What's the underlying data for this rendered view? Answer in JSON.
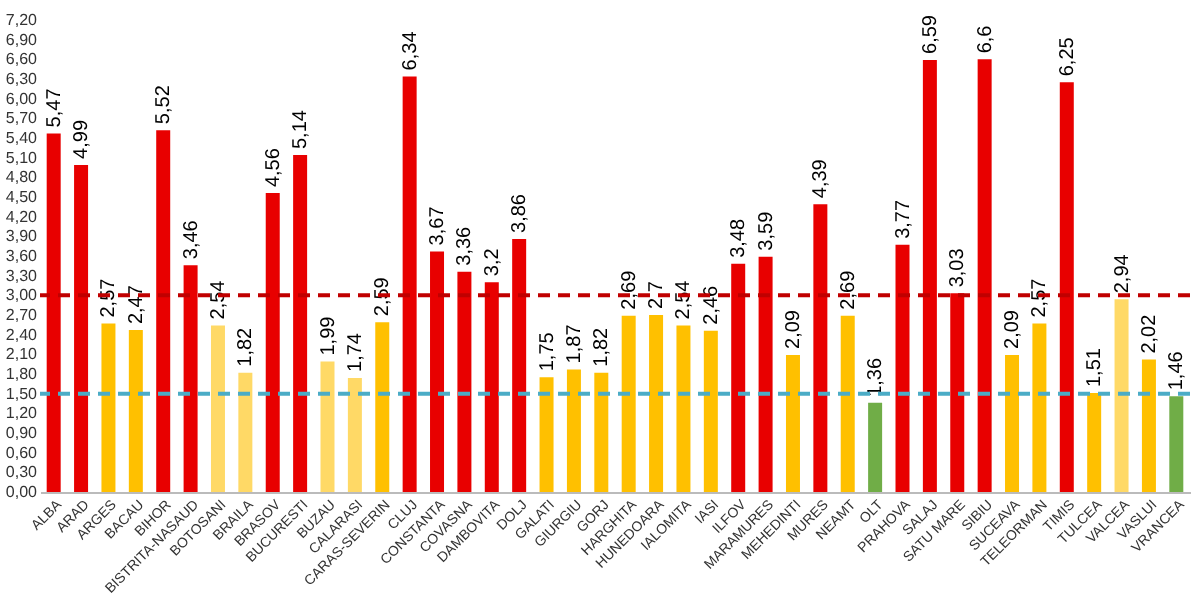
{
  "chart_data": {
    "type": "bar",
    "categories": [
      "ALBA",
      "ARAD",
      "ARGES",
      "BACAU",
      "BIHOR",
      "BISTRITA-NASAUD",
      "BOTOSANI",
      "BRAILA",
      "BRASOV",
      "BUCURESTI",
      "BUZAU",
      "CALARASI",
      "CARAS-SEVERIN",
      "CLUJ",
      "CONSTANTA",
      "COVASNA",
      "DAMBOVITA",
      "DOLJ",
      "GALATI",
      "GIURGIU",
      "GORJ",
      "HARGHITA",
      "HUNEDOARA",
      "IALOMITA",
      "IASI",
      "ILFOV",
      "MARAMURES",
      "MEHEDINTI",
      "MURES",
      "NEAMT",
      "OLT",
      "PRAHOVA",
      "SALAJ",
      "SATU MARE",
      "SIBIU",
      "SUCEAVA",
      "TELEORMAN",
      "TIMIS",
      "TULCEA",
      "VALCEA",
      "VASLUI",
      "VRANCEA"
    ],
    "values": [
      5.47,
      4.99,
      2.57,
      2.47,
      5.52,
      3.46,
      2.54,
      1.82,
      4.56,
      5.14,
      1.99,
      1.74,
      2.59,
      6.34,
      3.67,
      3.36,
      3.2,
      3.86,
      1.75,
      1.87,
      1.82,
      2.69,
      2.7,
      2.54,
      2.46,
      3.48,
      3.59,
      2.09,
      4.39,
      2.69,
      1.36,
      3.77,
      6.59,
      3.03,
      6.6,
      2.09,
      2.57,
      6.25,
      1.51,
      2.94,
      2.02,
      1.46
    ],
    "colors": [
      "#e80000",
      "#e80000",
      "#ffc000",
      "#ffc000",
      "#e80000",
      "#e80000",
      "#ffd966",
      "#ffd966",
      "#e80000",
      "#e80000",
      "#ffd966",
      "#ffd966",
      "#ffc000",
      "#e80000",
      "#e80000",
      "#e80000",
      "#e80000",
      "#e80000",
      "#ffc000",
      "#ffc000",
      "#ffc000",
      "#ffc000",
      "#ffc000",
      "#ffc000",
      "#ffc000",
      "#e80000",
      "#e80000",
      "#ffc000",
      "#e80000",
      "#ffc000",
      "#70ad47",
      "#e80000",
      "#e80000",
      "#e80000",
      "#e80000",
      "#ffc000",
      "#ffc000",
      "#e80000",
      "#ffc000",
      "#ffd966",
      "#ffc000",
      "#70ad47"
    ],
    "value_labels": [
      "5,47",
      "4,99",
      "2,57",
      "2,47",
      "5,52",
      "3,46",
      "2,54",
      "1,82",
      "4,56",
      "5,14",
      "1,99",
      "1,74",
      "2,59",
      "6,34",
      "3,67",
      "3,36",
      "3,2",
      "3,86",
      "1,75",
      "1,87",
      "1,82",
      "2,69",
      "2,7",
      "2,54",
      "2,46",
      "3,48",
      "3,59",
      "2,09",
      "4,39",
      "2,69",
      "1,36",
      "3,77",
      "6,59",
      "3,03",
      "6,6",
      "2,09",
      "2,57",
      "6,25",
      "1,51",
      "2,94",
      "2,02",
      "1,46"
    ],
    "ylim": [
      0,
      7.2
    ],
    "yticks": [
      {
        "value": 0,
        "label": "0,00"
      },
      {
        "value": 0.3,
        "label": "0,30"
      },
      {
        "value": 0.6,
        "label": "0,60"
      },
      {
        "value": 0.9,
        "label": "0,90"
      },
      {
        "value": 1.2,
        "label": "1,20"
      },
      {
        "value": 1.5,
        "label": "1,50"
      },
      {
        "value": 1.8,
        "label": "1,80"
      },
      {
        "value": 2.1,
        "label": "2,10"
      },
      {
        "value": 2.4,
        "label": "2,40"
      },
      {
        "value": 2.7,
        "label": "2,70"
      },
      {
        "value": 3,
        "label": "3,00"
      },
      {
        "value": 3.3,
        "label": "3,30"
      },
      {
        "value": 3.6,
        "label": "3,60"
      },
      {
        "value": 3.9,
        "label": "3,90"
      },
      {
        "value": 4.2,
        "label": "4,20"
      },
      {
        "value": 4.5,
        "label": "4,50"
      },
      {
        "value": 4.8,
        "label": "4,80"
      },
      {
        "value": 5.1,
        "label": "5,10"
      },
      {
        "value": 5.4,
        "label": "5,40"
      },
      {
        "value": 5.7,
        "label": "5,70"
      },
      {
        "value": 6,
        "label": "6,00"
      },
      {
        "value": 6.3,
        "label": "6,30"
      },
      {
        "value": 6.6,
        "label": "6,60"
      },
      {
        "value": 6.9,
        "label": "6,90"
      },
      {
        "value": 7.2,
        "label": "7,20"
      }
    ],
    "ref_lines": [
      {
        "axis": "y",
        "value": 3,
        "color": "#c00000",
        "line_style": "dashed"
      },
      {
        "axis": "y",
        "value": 1.5,
        "color": "#4bacc6",
        "line_style": "dashed"
      }
    ],
    "grid": false
  }
}
